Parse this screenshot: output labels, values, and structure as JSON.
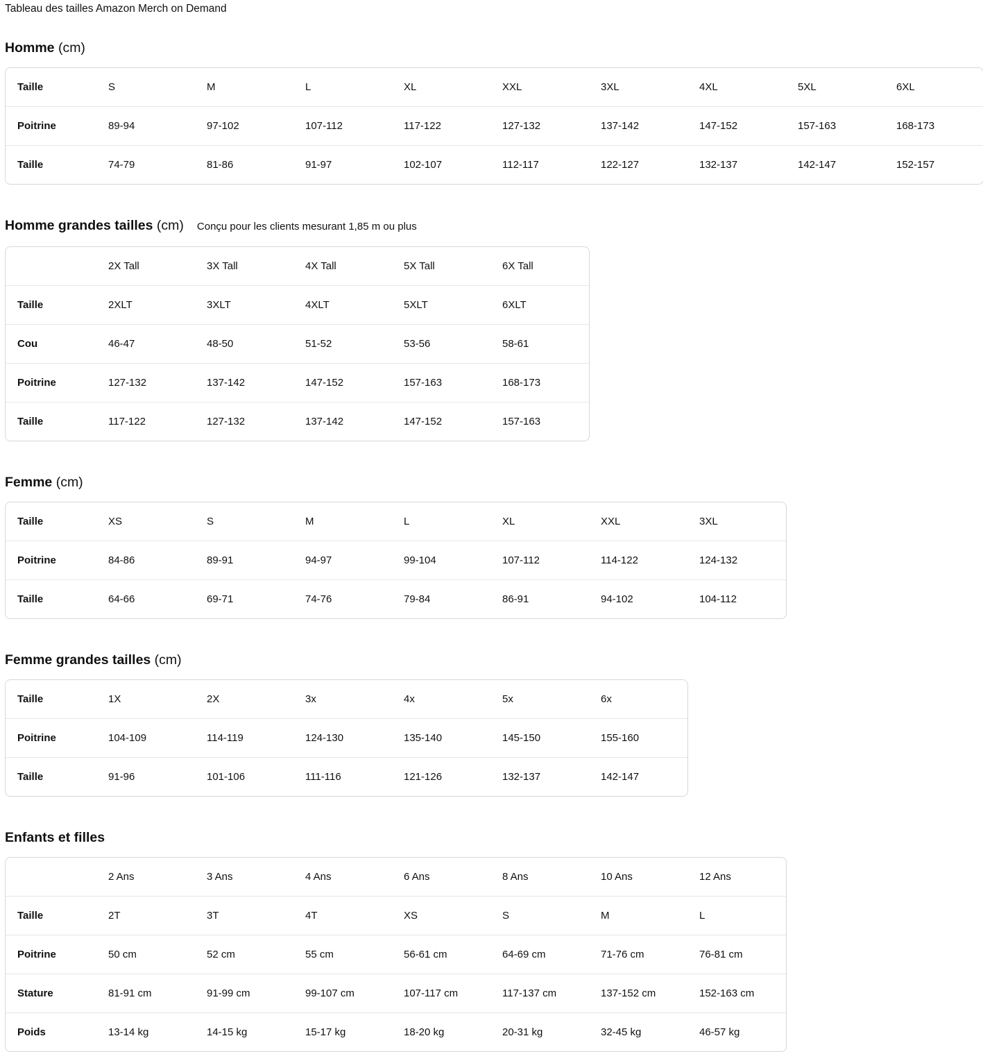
{
  "page_title": "Tableau des tailles Amazon Merch on Demand",
  "text_color": "#0f1111",
  "table_border_color": "#d5d9d9",
  "row_divider_color": "#e7e7e7",
  "sections": [
    {
      "id": "homme",
      "heading": "Homme",
      "heading_suffix": "(cm)",
      "subtitle": "",
      "table": {
        "corner_label": "Taille",
        "columns": [
          "S",
          "M",
          "L",
          "XL",
          "XXL",
          "3XL",
          "4XL",
          "5XL",
          "6XL"
        ],
        "rows": [
          {
            "label": "Poitrine",
            "values": [
              "89-94",
              "97-102",
              "107-112",
              "117-122",
              "127-132",
              "137-142",
              "147-152",
              "157-163",
              "168-173"
            ]
          },
          {
            "label": "Taille",
            "values": [
              "74-79",
              "81-86",
              "91-97",
              "102-107",
              "112-117",
              "122-127",
              "132-137",
              "142-147",
              "152-157"
            ]
          }
        ]
      }
    },
    {
      "id": "homme-grandes-tailles",
      "heading": "Homme grandes tailles",
      "heading_suffix": "(cm)",
      "subtitle": "Conçu pour les clients mesurant 1,85 m ou plus",
      "table": {
        "corner_label": "",
        "columns": [
          "2X Tall",
          "3X Tall",
          "4X Tall",
          "5X Tall",
          "6X Tall"
        ],
        "rows": [
          {
            "label": "Taille",
            "values": [
              "2XLT",
              "3XLT",
              "4XLT",
              "5XLT",
              "6XLT"
            ]
          },
          {
            "label": "Cou",
            "values": [
              "46-47",
              "48-50",
              "51-52",
              "53-56",
              "58-61"
            ]
          },
          {
            "label": "Poitrine",
            "values": [
              "127-132",
              "137-142",
              "147-152",
              "157-163",
              "168-173"
            ]
          },
          {
            "label": "Taille",
            "values": [
              "117-122",
              "127-132",
              "137-142",
              "147-152",
              "157-163"
            ]
          }
        ]
      }
    },
    {
      "id": "femme",
      "heading": "Femme",
      "heading_suffix": "(cm)",
      "subtitle": "",
      "table": {
        "corner_label": "Taille",
        "columns": [
          "XS",
          "S",
          "M",
          "L",
          "XL",
          "XXL",
          "3XL"
        ],
        "rows": [
          {
            "label": "Poitrine",
            "values": [
              "84-86",
              "89-91",
              "94-97",
              "99-104",
              "107-112",
              "114-122",
              "124-132"
            ]
          },
          {
            "label": "Taille",
            "values": [
              "64-66",
              "69-71",
              "74-76",
              "79-84",
              "86-91",
              "94-102",
              "104-112"
            ]
          }
        ]
      }
    },
    {
      "id": "femme-grandes-tailles",
      "heading": "Femme grandes tailles",
      "heading_suffix": "(cm)",
      "subtitle": "",
      "table": {
        "corner_label": "Taille",
        "columns": [
          "1X",
          "2X",
          "3x",
          "4x",
          "5x",
          "6x"
        ],
        "rows": [
          {
            "label": "Poitrine",
            "values": [
              "104-109",
              "114-119",
              "124-130",
              "135-140",
              "145-150",
              "155-160"
            ]
          },
          {
            "label": "Taille",
            "values": [
              "91-96",
              "101-106",
              "111-116",
              "121-126",
              "132-137",
              "142-147"
            ]
          }
        ]
      }
    },
    {
      "id": "enfants-et-filles",
      "heading": "Enfants et filles",
      "heading_suffix": "",
      "subtitle": "",
      "table": {
        "corner_label": "",
        "columns": [
          "2 Ans",
          "3 Ans",
          "4 Ans",
          "6 Ans",
          "8 Ans",
          "10 Ans",
          "12 Ans"
        ],
        "rows": [
          {
            "label": "Taille",
            "values": [
              "2T",
              "3T",
              "4T",
              "XS",
              "S",
              "M",
              "L"
            ]
          },
          {
            "label": "Poitrine",
            "values": [
              "50 cm",
              "52 cm",
              "55 cm",
              "56-61 cm",
              "64-69 cm",
              "71-76 cm",
              "76-81 cm"
            ]
          },
          {
            "label": "Stature",
            "values": [
              "81-91 cm",
              "91-99 cm",
              "99-107 cm",
              "107-117 cm",
              "117-137 cm",
              "137-152 cm",
              "152-163 cm"
            ]
          },
          {
            "label": "Poids",
            "values": [
              "13-14 kg",
              "14-15 kg",
              "15-17 kg",
              "18-20 kg",
              "20-31 kg",
              "32-45 kg",
              "46-57 kg"
            ]
          }
        ]
      }
    }
  ]
}
